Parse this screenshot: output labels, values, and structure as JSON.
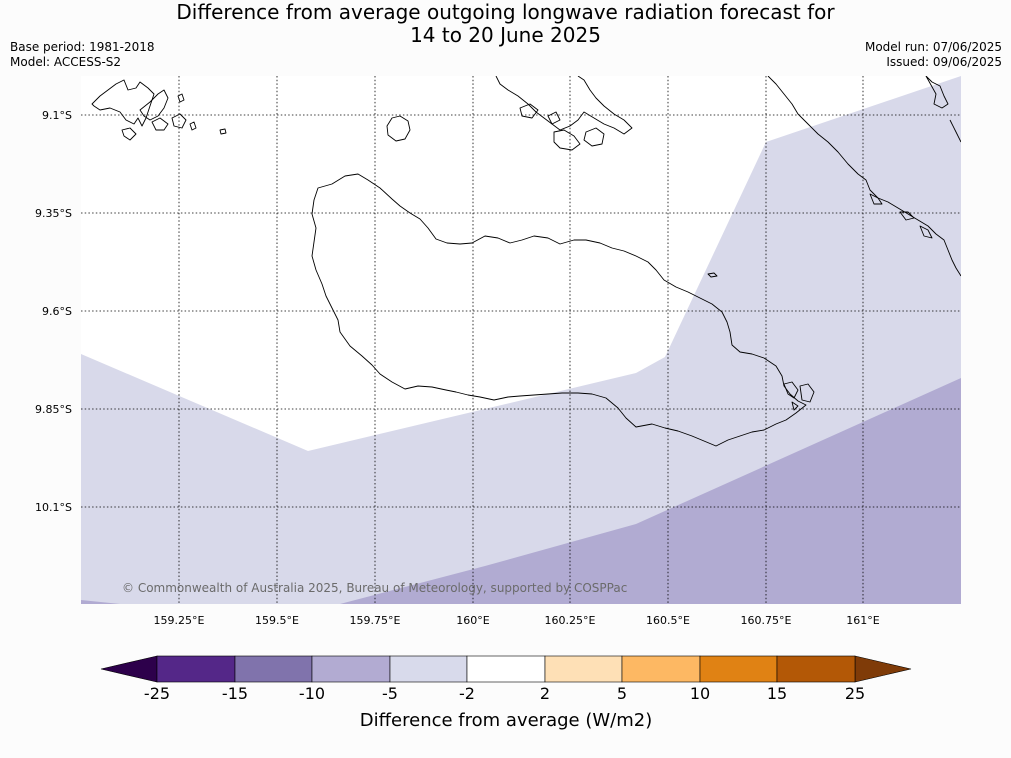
{
  "title": {
    "line1": "Difference from average outgoing longwave radiation forecast for",
    "line2": "14 to 20 June 2025"
  },
  "header_left": {
    "base_period": "Base period: 1981-2018",
    "model": "Model: ACCESS-S2"
  },
  "header_right": {
    "model_run": "Model run: 07/06/2025",
    "issued": "Issued: 09/06/2025"
  },
  "map": {
    "lon_ticks": [
      "159.25°E",
      "159.5°E",
      "159.75°E",
      "160°E",
      "160.25°E",
      "160.5°E",
      "160.75°E",
      "161°E"
    ],
    "lat_ticks": [
      "9.1°S",
      "9.35°S",
      "9.6°S",
      "9.85°S",
      "10.1°S"
    ],
    "gridlines": "dotted",
    "copyright": "© Commonwealth of Australia 2025, Bureau of Meteorology, supported by COSPPac"
  },
  "colorbar": {
    "title": "Difference from average (W/m2)",
    "tick_labels": [
      "-25",
      "-15",
      "-10",
      "-5",
      "-2",
      "2",
      "5",
      "10",
      "15",
      "25"
    ],
    "under_color": "#2d004b",
    "over_color": "#7f3b08",
    "bin_colors": [
      "#542788",
      "#8073ac",
      "#b2abd2",
      "#d8daeb",
      "#ffffff",
      "#fee0b6",
      "#fdb863",
      "#e08214",
      "#b35806"
    ]
  },
  "colors": {
    "light_purple": "#d8d9ea",
    "mid_purple": "#b1abd2",
    "coastline": "#000000"
  }
}
